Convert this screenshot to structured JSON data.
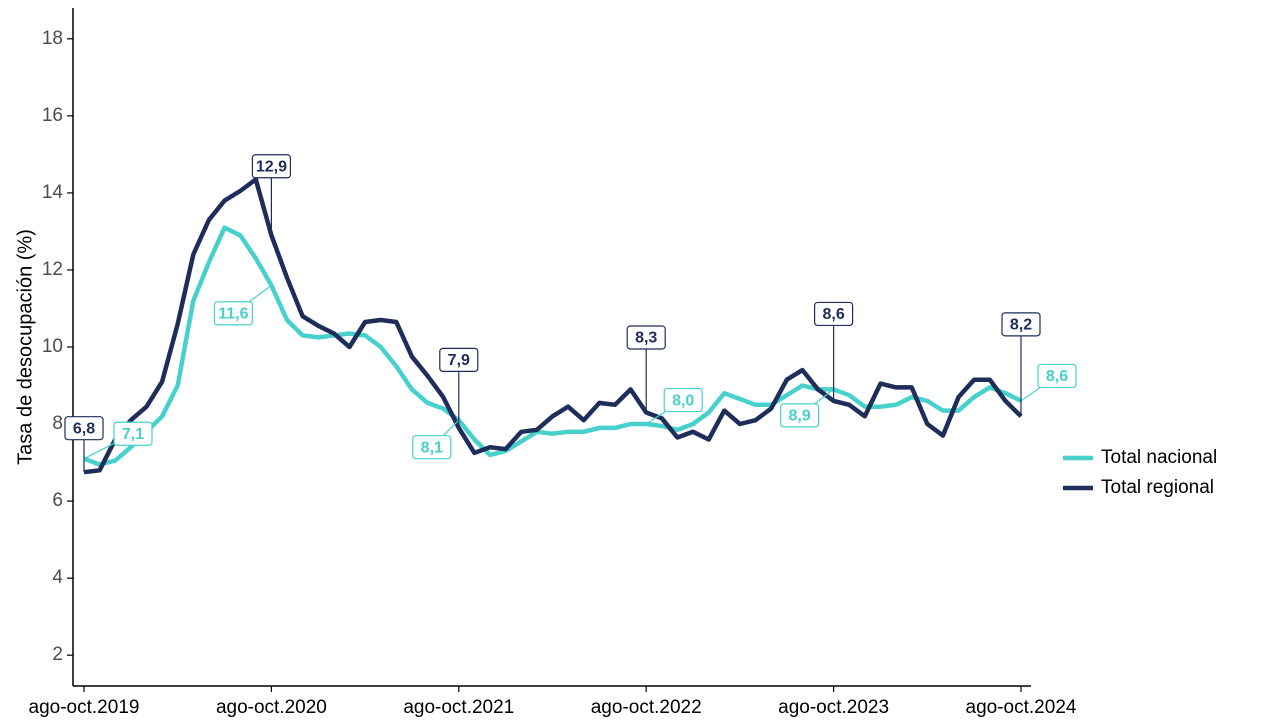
{
  "chart_data": {
    "type": "line",
    "y_label": "Tasa de desocupación (%)",
    "categories": [
      "ago-oct.2019",
      null,
      null,
      null,
      null,
      null,
      null,
      null,
      null,
      null,
      null,
      null,
      "ago-oct.2020",
      null,
      null,
      null,
      null,
      null,
      null,
      null,
      null,
      null,
      null,
      null,
      "ago-oct.2021",
      null,
      null,
      null,
      null,
      null,
      null,
      null,
      null,
      null,
      null,
      null,
      "ago-oct.2022",
      null,
      null,
      null,
      null,
      null,
      null,
      null,
      null,
      null,
      null,
      null,
      "ago-oct.2023",
      null,
      null,
      null,
      null,
      null,
      null,
      null,
      null,
      null,
      null,
      null,
      "ago-oct.2024"
    ],
    "ylim": [
      1.2,
      18.8
    ],
    "yticks": [
      2,
      4,
      6,
      8,
      10,
      12,
      14,
      16,
      18
    ],
    "grid": false,
    "legend": "right",
    "series": [
      {
        "name": "Total nacional",
        "color": "#48d1cc",
        "values": [
          7.1,
          6.95,
          7.05,
          7.4,
          7.8,
          8.2,
          9.0,
          11.2,
          12.2,
          13.1,
          12.9,
          12.3,
          11.6,
          10.7,
          10.3,
          10.25,
          10.3,
          10.35,
          10.3,
          10.0,
          9.5,
          8.9,
          8.55,
          8.4,
          8.1,
          7.6,
          7.2,
          7.3,
          7.55,
          7.8,
          7.75,
          7.8,
          7.8,
          7.9,
          7.9,
          8.0,
          8.0,
          7.95,
          7.85,
          8.0,
          8.3,
          8.8,
          8.65,
          8.5,
          8.5,
          8.75,
          9.0,
          8.9,
          8.9,
          8.75,
          8.45,
          8.45,
          8.5,
          8.7,
          8.6,
          8.35,
          8.35,
          8.7,
          8.95,
          8.8,
          8.6
        ],
        "value_labels": [
          "7,1",
          null,
          null,
          null,
          null,
          null,
          null,
          null,
          null,
          null,
          null,
          null,
          "11,6",
          null,
          null,
          null,
          null,
          null,
          null,
          null,
          null,
          null,
          null,
          null,
          "8,1",
          null,
          null,
          null,
          null,
          null,
          null,
          null,
          null,
          null,
          null,
          null,
          "8,0",
          null,
          null,
          null,
          null,
          null,
          null,
          null,
          null,
          null,
          null,
          null,
          "8,9",
          null,
          null,
          null,
          null,
          null,
          null,
          null,
          null,
          null,
          null,
          null,
          "8,6"
        ]
      },
      {
        "name": "Total regional",
        "color": "#1f2d5a",
        "values": [
          6.75,
          6.8,
          7.6,
          8.1,
          8.45,
          9.1,
          10.6,
          12.4,
          13.3,
          13.8,
          14.05,
          14.35,
          12.9,
          11.8,
          10.8,
          10.55,
          10.35,
          10.0,
          10.65,
          10.7,
          10.65,
          9.75,
          9.25,
          8.7,
          7.9,
          7.25,
          7.4,
          7.35,
          7.8,
          7.85,
          8.2,
          8.45,
          8.1,
          8.55,
          8.5,
          8.9,
          8.3,
          8.15,
          7.65,
          7.8,
          7.6,
          8.35,
          8.0,
          8.1,
          8.4,
          9.15,
          9.4,
          8.9,
          8.6,
          8.5,
          8.2,
          9.05,
          8.95,
          8.95,
          8.0,
          7.7,
          8.7,
          9.15,
          9.15,
          8.6,
          8.2
        ],
        "value_labels": [
          "6,8",
          null,
          null,
          null,
          null,
          null,
          null,
          null,
          null,
          null,
          null,
          null,
          "12,9",
          null,
          null,
          null,
          null,
          null,
          null,
          null,
          null,
          null,
          null,
          null,
          "7,9",
          null,
          null,
          null,
          null,
          null,
          null,
          null,
          null,
          null,
          null,
          null,
          "8,3",
          null,
          null,
          null,
          null,
          null,
          null,
          null,
          null,
          null,
          null,
          null,
          "8,6",
          null,
          null,
          null,
          null,
          null,
          null,
          null,
          null,
          null,
          null,
          null,
          "8,2"
        ]
      }
    ]
  }
}
